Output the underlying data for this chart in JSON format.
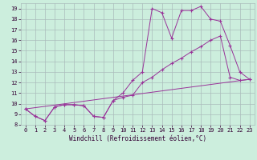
{
  "xlabel": "Windchill (Refroidissement éolien,°C)",
  "bg_color": "#cceedd",
  "grid_color": "#aabbbb",
  "line_color": "#993399",
  "xlim": [
    -0.5,
    23.5
  ],
  "ylim": [
    8,
    19.5
  ],
  "xticks": [
    0,
    1,
    2,
    3,
    4,
    5,
    6,
    7,
    8,
    9,
    10,
    11,
    12,
    13,
    14,
    15,
    16,
    17,
    18,
    19,
    20,
    21,
    22,
    23
  ],
  "yticks": [
    8,
    9,
    10,
    11,
    12,
    13,
    14,
    15,
    16,
    17,
    18,
    19
  ],
  "line1_x": [
    0,
    1,
    2,
    3,
    4,
    5,
    6,
    7,
    8,
    9,
    10,
    11,
    12,
    13,
    14,
    15,
    16,
    17,
    18,
    19,
    20,
    21,
    22,
    23
  ],
  "line1_y": [
    9.5,
    8.8,
    8.4,
    9.7,
    9.9,
    9.9,
    9.8,
    8.8,
    8.7,
    10.3,
    11.0,
    12.2,
    13.0,
    19.0,
    18.6,
    16.2,
    18.8,
    18.8,
    19.2,
    18.0,
    17.8,
    15.5,
    13.0,
    12.3
  ],
  "line2_x": [
    0,
    1,
    2,
    3,
    4,
    5,
    6,
    7,
    8,
    9,
    10,
    11,
    12,
    13,
    14,
    15,
    16,
    17,
    18,
    19,
    20,
    21,
    22,
    23
  ],
  "line2_y": [
    9.5,
    8.8,
    8.4,
    9.7,
    9.9,
    9.9,
    9.8,
    8.8,
    8.7,
    10.3,
    10.6,
    10.8,
    12.0,
    12.5,
    13.2,
    13.8,
    14.3,
    14.9,
    15.4,
    16.0,
    16.4,
    12.5,
    12.2,
    12.3
  ],
  "line3_x": [
    0,
    23
  ],
  "line3_y": [
    9.5,
    12.3
  ],
  "xlabel_fontsize": 5.5,
  "tick_fontsize": 5.0
}
